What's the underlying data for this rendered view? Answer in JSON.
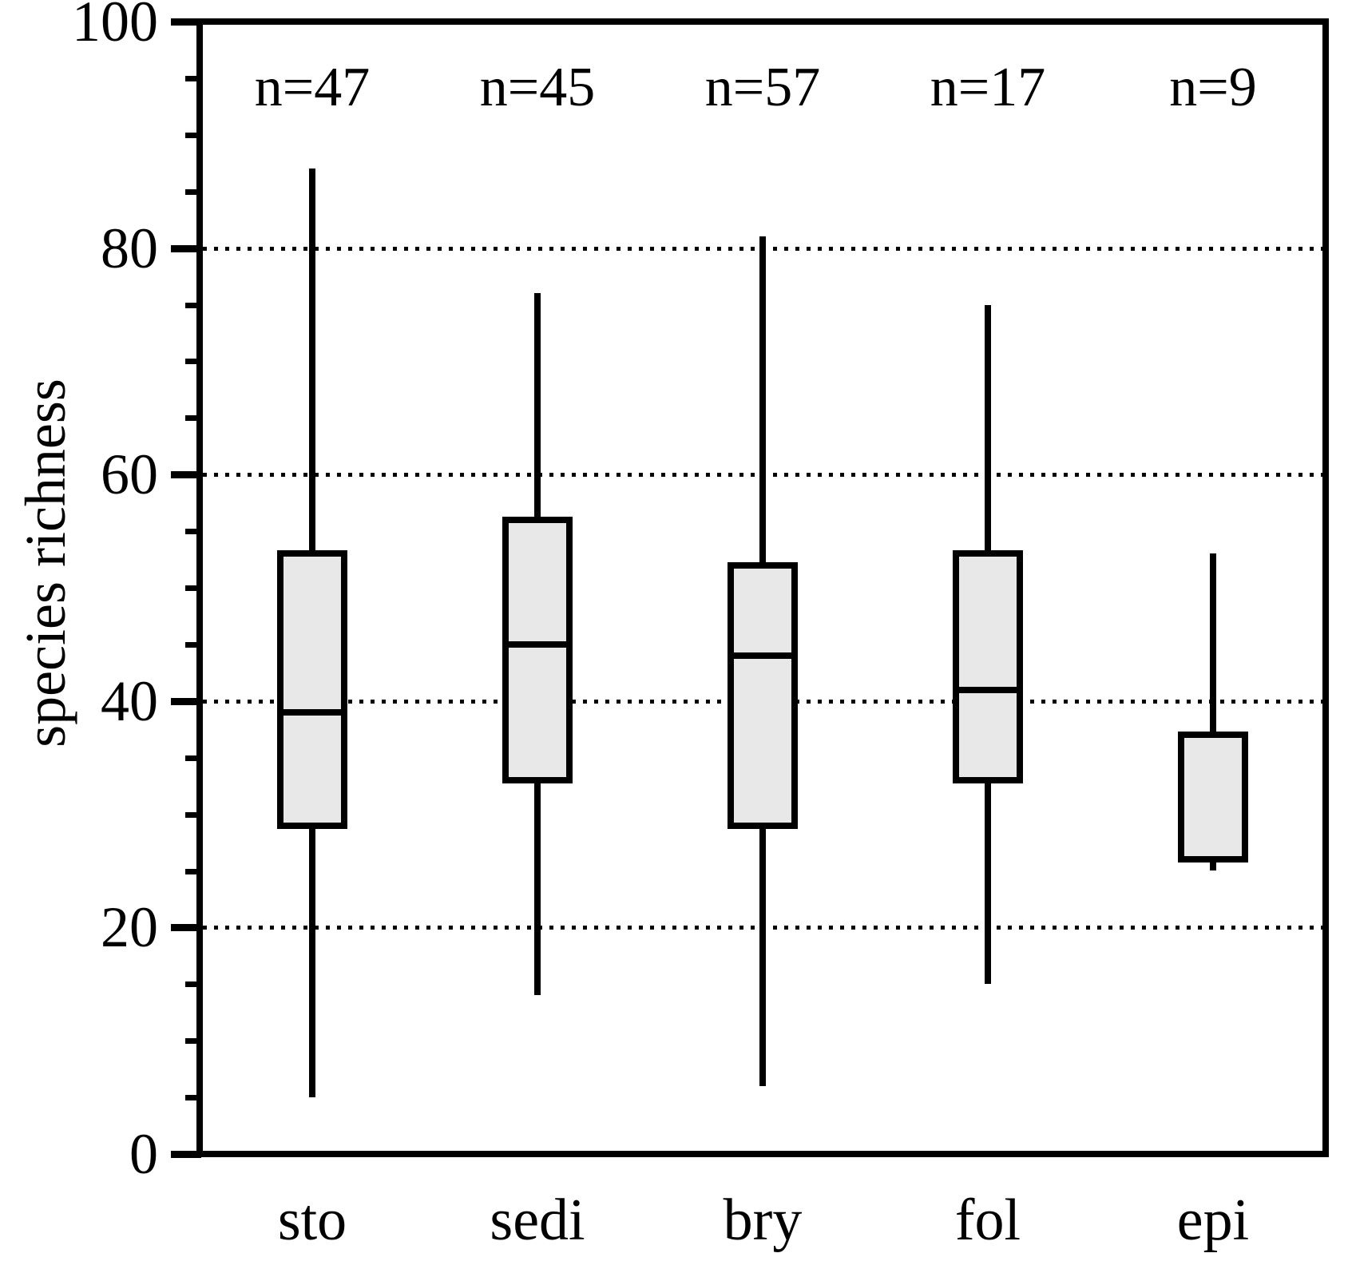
{
  "chart_data": {
    "type": "boxplot",
    "title": "",
    "xlabel": "",
    "ylabel": "species richness",
    "ylim": [
      0,
      100
    ],
    "yticks_major": [
      0,
      20,
      40,
      60,
      80,
      100
    ],
    "ytick_minor_step": 5,
    "gridlines_at": [
      20,
      40,
      60,
      80
    ],
    "grid_style": "dotted",
    "legend": "none",
    "categories": [
      "sto",
      "sedi",
      "bry",
      "fol",
      "epi"
    ],
    "n_labels": [
      "n=47",
      "n=45",
      "n=57",
      "n=17",
      "n=9"
    ],
    "series": [
      {
        "category": "sto",
        "n": 47,
        "whisker_low": 5,
        "q1": 29,
        "median": 39,
        "q3": 53,
        "whisker_high": 87
      },
      {
        "category": "sedi",
        "n": 45,
        "whisker_low": 14,
        "q1": 33,
        "median": 45,
        "q3": 56,
        "whisker_high": 76
      },
      {
        "category": "bry",
        "n": 57,
        "whisker_low": 6,
        "q1": 29,
        "median": 44,
        "q3": 52,
        "whisker_high": 81
      },
      {
        "category": "fol",
        "n": 17,
        "whisker_low": 15,
        "q1": 33,
        "median": 41,
        "q3": 53,
        "whisker_high": 75
      },
      {
        "category": "epi",
        "n": 9,
        "whisker_low": 25,
        "q1": 26,
        "median": 26,
        "q3": 37,
        "whisker_high": 53
      }
    ],
    "colors": {
      "box_fill": "#e8e8e8",
      "line": "#000000",
      "background": "#ffffff"
    }
  }
}
